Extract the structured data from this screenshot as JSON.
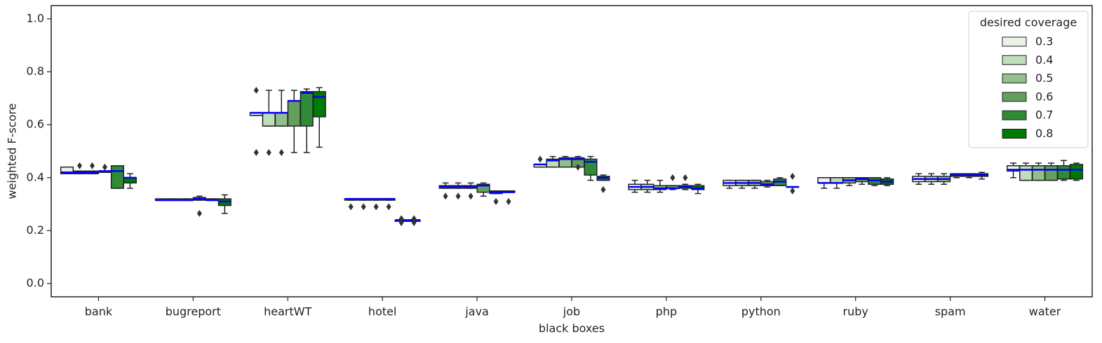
{
  "chart_data": {
    "type": "boxplot",
    "xlabel": "black boxes",
    "ylabel": "weighted F-score",
    "categories": [
      "bank",
      "bugreport",
      "heartWT",
      "hotel",
      "java",
      "job",
      "php",
      "python",
      "ruby",
      "spam",
      "water"
    ],
    "ylim": [
      -0.05,
      1.05
    ],
    "yticks": [
      {
        "value": 0,
        "label": "0.0"
      },
      0.2,
      0.4,
      0.6,
      0.8,
      {
        "value": 1,
        "label": "1.0"
      }
    ],
    "legend_title": "desired coverage",
    "legend_loc": "upper right",
    "median_color": "#0000ff",
    "series": [
      {
        "name": "0.3",
        "color": "#e9f4e7",
        "boxes": [
          {
            "whislo": 0.415,
            "q1": 0.415,
            "med": 0.42,
            "q3": 0.44,
            "whishi": 0.44,
            "fliers": []
          },
          {
            "whislo": 0.315,
            "q1": 0.315,
            "med": 0.315,
            "q3": 0.32,
            "whishi": 0.32,
            "fliers": []
          },
          {
            "whislo": 0.635,
            "q1": 0.635,
            "med": 0.645,
            "q3": 0.645,
            "whishi": 0.645,
            "fliers": [
              0.73,
              0.495
            ]
          },
          {
            "whislo": 0.315,
            "q1": 0.315,
            "med": 0.32,
            "q3": 0.32,
            "whishi": 0.32,
            "fliers": [
              0.29
            ]
          },
          {
            "whislo": 0.36,
            "q1": 0.36,
            "med": 0.365,
            "q3": 0.37,
            "whishi": 0.38,
            "fliers": [
              0.33
            ]
          },
          {
            "whislo": 0.44,
            "q1": 0.44,
            "med": 0.45,
            "q3": 0.45,
            "whishi": 0.45,
            "fliers": [
              0.47
            ]
          },
          {
            "whislo": 0.345,
            "q1": 0.355,
            "med": 0.365,
            "q3": 0.375,
            "whishi": 0.39,
            "fliers": []
          },
          {
            "whislo": 0.36,
            "q1": 0.37,
            "med": 0.38,
            "q3": 0.39,
            "whishi": 0.39,
            "fliers": []
          },
          {
            "whislo": 0.36,
            "q1": 0.38,
            "med": 0.38,
            "q3": 0.4,
            "whishi": 0.4,
            "fliers": []
          },
          {
            "whislo": 0.375,
            "q1": 0.385,
            "med": 0.395,
            "q3": 0.405,
            "whishi": 0.415,
            "fliers": []
          },
          {
            "whislo": 0.4,
            "q1": 0.425,
            "med": 0.43,
            "q3": 0.445,
            "whishi": 0.455,
            "fliers": []
          }
        ]
      },
      {
        "name": "0.4",
        "color": "#bfdcbb",
        "boxes": [
          {
            "whislo": 0.415,
            "q1": 0.415,
            "med": 0.42,
            "q3": 0.425,
            "whishi": 0.425,
            "fliers": [
              0.445
            ]
          },
          {
            "whislo": 0.315,
            "q1": 0.315,
            "med": 0.315,
            "q3": 0.32,
            "whishi": 0.32,
            "fliers": []
          },
          {
            "whislo": 0.595,
            "q1": 0.595,
            "med": 0.645,
            "q3": 0.645,
            "whishi": 0.73,
            "fliers": [
              0.495
            ]
          },
          {
            "whislo": 0.315,
            "q1": 0.315,
            "med": 0.32,
            "q3": 0.32,
            "whishi": 0.32,
            "fliers": [
              0.29
            ]
          },
          {
            "whislo": 0.36,
            "q1": 0.36,
            "med": 0.365,
            "q3": 0.37,
            "whishi": 0.38,
            "fliers": [
              0.33
            ]
          },
          {
            "whislo": 0.44,
            "q1": 0.44,
            "med": 0.465,
            "q3": 0.47,
            "whishi": 0.48,
            "fliers": []
          },
          {
            "whislo": 0.345,
            "q1": 0.355,
            "med": 0.365,
            "q3": 0.375,
            "whishi": 0.39,
            "fliers": []
          },
          {
            "whislo": 0.36,
            "q1": 0.37,
            "med": 0.38,
            "q3": 0.39,
            "whishi": 0.39,
            "fliers": []
          },
          {
            "whislo": 0.36,
            "q1": 0.38,
            "med": 0.38,
            "q3": 0.4,
            "whishi": 0.4,
            "fliers": []
          },
          {
            "whislo": 0.375,
            "q1": 0.385,
            "med": 0.395,
            "q3": 0.405,
            "whishi": 0.415,
            "fliers": []
          },
          {
            "whislo": 0.39,
            "q1": 0.39,
            "med": 0.43,
            "q3": 0.445,
            "whishi": 0.455,
            "fliers": []
          }
        ]
      },
      {
        "name": "0.5",
        "color": "#92c08a",
        "boxes": [
          {
            "whislo": 0.415,
            "q1": 0.415,
            "med": 0.42,
            "q3": 0.425,
            "whishi": 0.425,
            "fliers": [
              0.445
            ]
          },
          {
            "whislo": 0.315,
            "q1": 0.315,
            "med": 0.315,
            "q3": 0.32,
            "whishi": 0.32,
            "fliers": []
          },
          {
            "whislo": 0.595,
            "q1": 0.595,
            "med": 0.645,
            "q3": 0.645,
            "whishi": 0.73,
            "fliers": [
              0.495
            ]
          },
          {
            "whislo": 0.315,
            "q1": 0.315,
            "med": 0.32,
            "q3": 0.32,
            "whishi": 0.32,
            "fliers": [
              0.29
            ]
          },
          {
            "whislo": 0.36,
            "q1": 0.36,
            "med": 0.365,
            "q3": 0.37,
            "whishi": 0.38,
            "fliers": [
              0.33
            ]
          },
          {
            "whislo": 0.44,
            "q1": 0.44,
            "med": 0.47,
            "q3": 0.475,
            "whishi": 0.48,
            "fliers": []
          },
          {
            "whislo": 0.345,
            "q1": 0.355,
            "med": 0.36,
            "q3": 0.37,
            "whishi": 0.39,
            "fliers": []
          },
          {
            "whislo": 0.36,
            "q1": 0.37,
            "med": 0.38,
            "q3": 0.39,
            "whishi": 0.39,
            "fliers": []
          },
          {
            "whislo": 0.37,
            "q1": 0.38,
            "med": 0.39,
            "q3": 0.4,
            "whishi": 0.4,
            "fliers": []
          },
          {
            "whislo": 0.375,
            "q1": 0.385,
            "med": 0.395,
            "q3": 0.405,
            "whishi": 0.415,
            "fliers": []
          },
          {
            "whislo": 0.39,
            "q1": 0.39,
            "med": 0.43,
            "q3": 0.445,
            "whishi": 0.455,
            "fliers": []
          }
        ]
      },
      {
        "name": "0.6",
        "color": "#62a05c",
        "boxes": [
          {
            "whislo": 0.42,
            "q1": 0.42,
            "med": 0.425,
            "q3": 0.425,
            "whishi": 0.425,
            "fliers": [
              0.44
            ]
          },
          {
            "whislo": 0.315,
            "q1": 0.315,
            "med": 0.32,
            "q3": 0.325,
            "whishi": 0.33,
            "fliers": [
              0.265
            ]
          },
          {
            "whislo": 0.495,
            "q1": 0.595,
            "med": 0.69,
            "q3": 0.69,
            "whishi": 0.73,
            "fliers": []
          },
          {
            "whislo": 0.315,
            "q1": 0.315,
            "med": 0.32,
            "q3": 0.32,
            "whishi": 0.32,
            "fliers": [
              0.29
            ]
          },
          {
            "whislo": 0.33,
            "q1": 0.345,
            "med": 0.37,
            "q3": 0.375,
            "whishi": 0.38,
            "fliers": []
          },
          {
            "whislo": 0.44,
            "q1": 0.44,
            "med": 0.47,
            "q3": 0.475,
            "whishi": 0.48,
            "fliers": [
              0.44
            ]
          },
          {
            "whislo": 0.355,
            "q1": 0.36,
            "med": 0.36,
            "q3": 0.37,
            "whishi": 0.37,
            "fliers": [
              0.4
            ]
          },
          {
            "whislo": 0.365,
            "q1": 0.37,
            "med": 0.375,
            "q3": 0.385,
            "whishi": 0.39,
            "fliers": []
          },
          {
            "whislo": 0.375,
            "q1": 0.385,
            "med": 0.395,
            "q3": 0.4,
            "whishi": 0.4,
            "fliers": []
          },
          {
            "whislo": 0.4,
            "q1": 0.405,
            "med": 0.41,
            "q3": 0.415,
            "whishi": 0.415,
            "fliers": []
          },
          {
            "whislo": 0.39,
            "q1": 0.39,
            "med": 0.43,
            "q3": 0.445,
            "whishi": 0.455,
            "fliers": []
          }
        ]
      },
      {
        "name": "0.7",
        "color": "#2f8b37",
        "boxes": [
          {
            "whislo": 0.36,
            "q1": 0.36,
            "med": 0.425,
            "q3": 0.445,
            "whishi": 0.445,
            "fliers": []
          },
          {
            "whislo": 0.315,
            "q1": 0.315,
            "med": 0.315,
            "q3": 0.32,
            "whishi": 0.32,
            "fliers": []
          },
          {
            "whislo": 0.495,
            "q1": 0.595,
            "med": 0.72,
            "q3": 0.725,
            "whishi": 0.735,
            "fliers": []
          },
          {
            "whislo": 0.235,
            "q1": 0.235,
            "med": 0.24,
            "q3": 0.24,
            "whishi": 0.24,
            "fliers": [
              0.23,
              0.245
            ]
          },
          {
            "whislo": 0.34,
            "q1": 0.34,
            "med": 0.345,
            "q3": 0.35,
            "whishi": 0.35,
            "fliers": [
              0.31
            ]
          },
          {
            "whislo": 0.39,
            "q1": 0.41,
            "med": 0.46,
            "q3": 0.47,
            "whishi": 0.48,
            "fliers": []
          },
          {
            "whislo": 0.355,
            "q1": 0.36,
            "med": 0.365,
            "q3": 0.37,
            "whishi": 0.375,
            "fliers": [
              0.4
            ]
          },
          {
            "whislo": 0.37,
            "q1": 0.37,
            "med": 0.385,
            "q3": 0.395,
            "whishi": 0.4,
            "fliers": []
          },
          {
            "whislo": 0.37,
            "q1": 0.375,
            "med": 0.39,
            "q3": 0.4,
            "whishi": 0.4,
            "fliers": []
          },
          {
            "whislo": 0.4,
            "q1": 0.405,
            "med": 0.41,
            "q3": 0.415,
            "whishi": 0.415,
            "fliers": []
          },
          {
            "whislo": 0.39,
            "q1": 0.395,
            "med": 0.43,
            "q3": 0.445,
            "whishi": 0.465,
            "fliers": []
          }
        ]
      },
      {
        "name": "0.8",
        "color": "#007a00",
        "boxes": [
          {
            "whislo": 0.36,
            "q1": 0.38,
            "med": 0.4,
            "q3": 0.4,
            "whishi": 0.415,
            "fliers": []
          },
          {
            "whislo": 0.265,
            "q1": 0.295,
            "med": 0.31,
            "q3": 0.32,
            "whishi": 0.335,
            "fliers": []
          },
          {
            "whislo": 0.515,
            "q1": 0.63,
            "med": 0.705,
            "q3": 0.725,
            "whishi": 0.74,
            "fliers": []
          },
          {
            "whislo": 0.235,
            "q1": 0.235,
            "med": 0.24,
            "q3": 0.24,
            "whishi": 0.24,
            "fliers": [
              0.23,
              0.245
            ]
          },
          {
            "whislo": 0.345,
            "q1": 0.345,
            "med": 0.345,
            "q3": 0.35,
            "whishi": 0.35,
            "fliers": [
              0.31
            ]
          },
          {
            "whislo": 0.39,
            "q1": 0.39,
            "med": 0.4,
            "q3": 0.405,
            "whishi": 0.41,
            "fliers": [
              0.355
            ]
          },
          {
            "whislo": 0.34,
            "q1": 0.355,
            "med": 0.36,
            "q3": 0.37,
            "whishi": 0.375,
            "fliers": []
          },
          {
            "whislo": 0.365,
            "q1": 0.365,
            "med": 0.365,
            "q3": 0.365,
            "whishi": 0.365,
            "fliers": [
              0.405,
              0.35
            ]
          },
          {
            "whislo": 0.37,
            "q1": 0.375,
            "med": 0.385,
            "q3": 0.395,
            "whishi": 0.4,
            "fliers": []
          },
          {
            "whislo": 0.395,
            "q1": 0.405,
            "med": 0.41,
            "q3": 0.415,
            "whishi": 0.42,
            "fliers": []
          },
          {
            "whislo": 0.39,
            "q1": 0.395,
            "med": 0.43,
            "q3": 0.45,
            "whishi": 0.455,
            "fliers": []
          }
        ]
      }
    ]
  }
}
